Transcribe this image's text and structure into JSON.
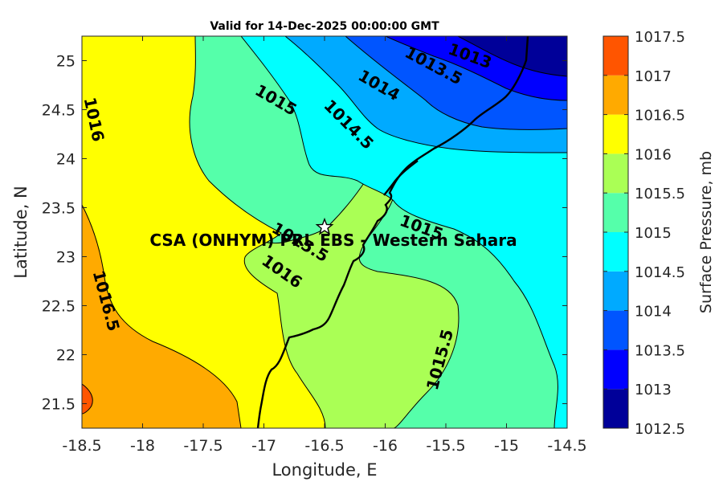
{
  "chart_data": {
    "type": "contour",
    "title": "Valid for 14-Dec-2025 00:00:00 GMT",
    "xlabel": "Longitude, E",
    "ylabel": "Latitude, N",
    "xlim": [
      -18.5,
      -14.5
    ],
    "ylim": [
      21.25,
      25.25
    ],
    "x_ticks": [
      "-18.5",
      "-18",
      "-17.5",
      "-17",
      "-16.5",
      "-16",
      "-15.5",
      "-15",
      "-14.5"
    ],
    "y_ticks": [
      "21.5",
      "22",
      "22.5",
      "23",
      "23.5",
      "24",
      "24.5",
      "25"
    ],
    "colorbar": {
      "label": "Surface Pressure, mb",
      "ticks": [
        "1012.5",
        "1013",
        "1013.5",
        "1014",
        "1014.5",
        "1015",
        "1015.5",
        "1016",
        "1016.5",
        "1017",
        "1017.5"
      ],
      "levels": [
        1012.5,
        1013,
        1013.5,
        1014,
        1014.5,
        1015,
        1015.5,
        1016,
        1016.5,
        1017,
        1017.5
      ],
      "colors": [
        "#000099",
        "#0000ff",
        "#0055ff",
        "#00aaff",
        "#00ffff",
        "#55ffaa",
        "#aaff55",
        "#ffff00",
        "#ffaa00",
        "#ff5500",
        "#ff0000"
      ]
    },
    "contour_labels": [
      {
        "text": "1013",
        "lon": -15.3,
        "lat": 25.05
      },
      {
        "text": "1013.5",
        "lon": -15.6,
        "lat": 24.95
      },
      {
        "text": "1014",
        "lon": -16.05,
        "lat": 24.75
      },
      {
        "text": "1014.5",
        "lon": -16.3,
        "lat": 24.35
      },
      {
        "text": "1015",
        "lon": -16.9,
        "lat": 24.6
      },
      {
        "text": "1015",
        "lon": -15.7,
        "lat": 23.3
      },
      {
        "text": "1015.5",
        "lon": -16.7,
        "lat": 23.15
      },
      {
        "text": "1015.5",
        "lon": -15.55,
        "lat": 21.95
      },
      {
        "text": "1016",
        "lon": -18.4,
        "lat": 24.4
      },
      {
        "text": "1016",
        "lon": -16.85,
        "lat": 22.85
      },
      {
        "text": "1016.5",
        "lon": -18.3,
        "lat": 22.55
      }
    ],
    "site": {
      "name": "CSA (ONHYM) PRL EBS  - Western Sahara",
      "lon": -16.5,
      "lat": 23.3
    }
  }
}
